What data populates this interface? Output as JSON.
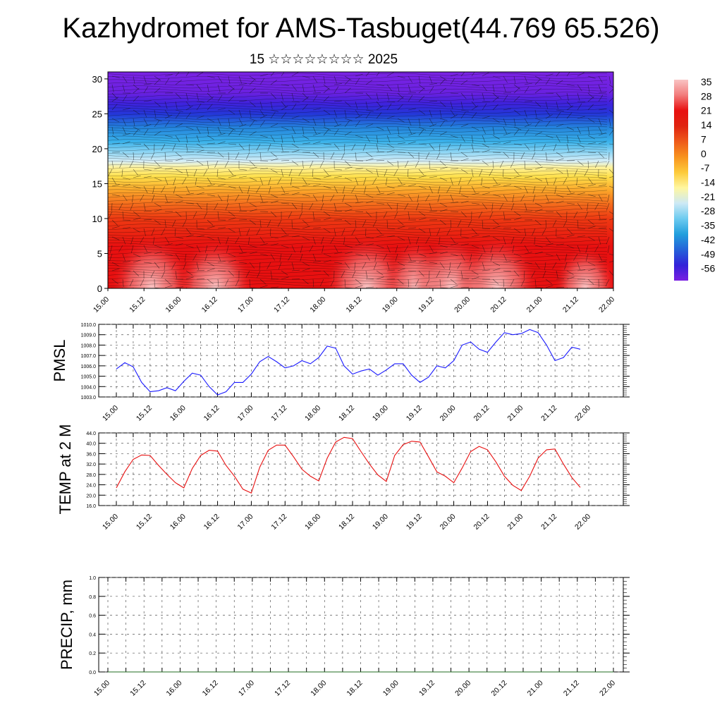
{
  "title": "Kazhydromet for AMS-Tasbuget(44.769 65.526)",
  "subtitle": "15 ☆☆☆☆☆☆☆☆ 2025",
  "time_labels": [
    "15.00",
    "15.12",
    "16.00",
    "16.12",
    "17.00",
    "17.12",
    "18.00",
    "18.12",
    "19.00",
    "19.12",
    "20.00",
    "20.12",
    "21.00",
    "21.12",
    "22.00"
  ],
  "chart_data": [
    {
      "type": "heatmap",
      "name": "cross-section",
      "ylim": [
        0,
        31
      ],
      "y_ticks": [
        0,
        5,
        10,
        15,
        20,
        25,
        30
      ],
      "colorbar_labels": [
        "35",
        "28",
        "21",
        "14",
        "7",
        "0",
        "-7",
        "-14",
        "-21",
        "-28",
        "-35",
        "-42",
        "-49",
        "-56"
      ],
      "colorbar_colors": [
        "#f9c4c4",
        "#f27b7b",
        "#e81010",
        "#e02410",
        "#ee5a1a",
        "#f8931e",
        "#fdcb3a",
        "#fff7a0",
        "#cde9f5",
        "#6ccbf0",
        "#219edd",
        "#2462d9",
        "#3322d9",
        "#7a1fe2"
      ]
    },
    {
      "type": "line",
      "ylabel": "PMSL",
      "ylim": [
        1003.0,
        1010.0
      ],
      "y_ticks": [
        "1003.0",
        "1004.0",
        "1005.0",
        "1006.0",
        "1007.0",
        "1008.0",
        "1009.0",
        "1010.0"
      ],
      "color": "#1a1aff",
      "x": [
        0,
        3,
        6,
        9,
        12,
        15,
        18,
        21,
        24,
        27,
        30,
        33,
        36,
        39,
        42,
        45,
        48,
        51,
        54,
        57,
        60,
        63,
        66,
        69,
        72,
        75,
        78,
        81,
        84,
        87,
        90,
        93,
        96,
        99,
        102,
        105,
        108,
        111,
        114,
        117,
        120,
        123,
        126,
        129,
        132,
        135,
        138,
        141,
        144,
        147,
        150,
        153,
        156,
        159,
        162,
        165
      ],
      "values": [
        1005.7,
        1006.3,
        1005.9,
        1004.4,
        1003.5,
        1003.6,
        1003.9,
        1003.6,
        1004.5,
        1005.3,
        1005.1,
        1004.0,
        1003.2,
        1003.5,
        1004.4,
        1004.4,
        1005.2,
        1006.4,
        1006.9,
        1006.4,
        1005.8,
        1006.0,
        1006.5,
        1006.2,
        1006.8,
        1007.9,
        1007.7,
        1006.0,
        1005.2,
        1005.5,
        1005.7,
        1005.1,
        1005.6,
        1006.2,
        1006.2,
        1005.1,
        1004.4,
        1004.9,
        1006.0,
        1005.8,
        1006.5,
        1008.0,
        1008.3,
        1007.6,
        1007.3,
        1008.3,
        1009.2,
        1009.0,
        1009.1,
        1009.5,
        1009.2,
        1008.0,
        1006.5,
        1006.8,
        1007.8,
        1007.6
      ]
    },
    {
      "type": "line",
      "ylabel": "TEMP at 2 M",
      "ylim": [
        16.0,
        44.0
      ],
      "y_ticks": [
        "16.0",
        "20.0",
        "24.0",
        "28.0",
        "32.0",
        "36.0",
        "40.0",
        "44.0"
      ],
      "color": "#e81010",
      "x": [
        0,
        3,
        6,
        9,
        12,
        15,
        18,
        21,
        24,
        27,
        30,
        33,
        36,
        39,
        42,
        45,
        48,
        51,
        54,
        57,
        60,
        63,
        66,
        69,
        72,
        75,
        78,
        81,
        84,
        87,
        90,
        93,
        96,
        99,
        102,
        105,
        108,
        111,
        114,
        117,
        120,
        123,
        126,
        129,
        132,
        135,
        138,
        141,
        144,
        147,
        150,
        153,
        156,
        159,
        162,
        165
      ],
      "values": [
        22.8,
        29.0,
        33.8,
        35.5,
        35.3,
        31.5,
        28.0,
        24.8,
        22.8,
        30.3,
        35.3,
        37.3,
        37.0,
        31.5,
        27.3,
        22.3,
        20.8,
        30.8,
        37.3,
        39.3,
        39.3,
        34.8,
        30.0,
        27.3,
        25.5,
        34.3,
        40.5,
        42.3,
        41.8,
        36.8,
        32.0,
        27.8,
        25.3,
        35.3,
        39.5,
        40.8,
        40.5,
        34.8,
        29.0,
        27.3,
        24.8,
        30.5,
        36.8,
        38.8,
        37.5,
        32.8,
        27.3,
        23.8,
        21.8,
        27.3,
        34.3,
        37.5,
        37.8,
        32.0,
        26.8,
        23.0
      ]
    },
    {
      "type": "line",
      "ylabel": "PRECIP, mm",
      "ylim": [
        0.0,
        1.0
      ],
      "y_ticks": [
        "0.0",
        "0.2",
        "0.4",
        "0.6",
        "0.8",
        "1.0"
      ],
      "color": "#1f6b1f",
      "x": [
        0,
        168
      ],
      "values": [
        0.0,
        0.0
      ]
    }
  ]
}
